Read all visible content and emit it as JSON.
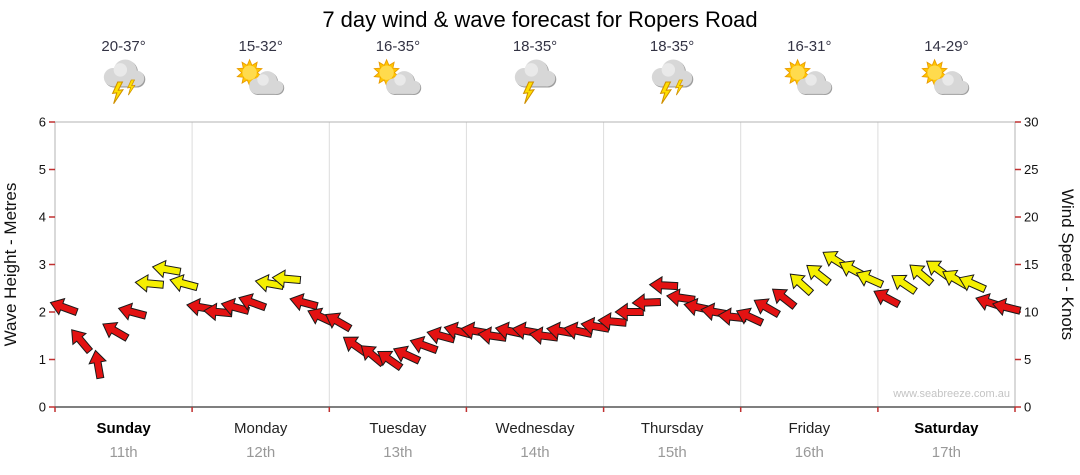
{
  "title": "7 day wind & wave forecast for Ropers Road",
  "watermark": "www.seabreeze.com.au",
  "axes": {
    "left_label": "Wave Height - Metres",
    "right_label": "Wind Speed - Knots",
    "left_ticks": [
      0,
      1,
      2,
      3,
      4,
      5,
      6
    ],
    "right_ticks": [
      0,
      5,
      10,
      15,
      20,
      25,
      30
    ]
  },
  "forecast": {
    "days": [
      {
        "name": "Sunday",
        "date": "11th",
        "temp": "20-37°",
        "icon": "storm",
        "bolts": 2,
        "bold": true
      },
      {
        "name": "Monday",
        "date": "12th",
        "temp": "15-32°",
        "icon": "partly-sunny",
        "bolts": 0,
        "bold": false
      },
      {
        "name": "Tuesday",
        "date": "13th",
        "temp": "16-35°",
        "icon": "partly-sunny",
        "bolts": 0,
        "bold": false
      },
      {
        "name": "Wednesday",
        "date": "14th",
        "temp": "18-35°",
        "icon": "storm",
        "bolts": 1,
        "bold": false
      },
      {
        "name": "Thursday",
        "date": "15th",
        "temp": "18-35°",
        "icon": "storm",
        "bolts": 2,
        "bold": false
      },
      {
        "name": "Friday",
        "date": "16th",
        "temp": "16-31°",
        "icon": "partly-sunny",
        "bolts": 0,
        "bold": false
      },
      {
        "name": "Saturday",
        "date": "17th",
        "temp": "14-29°",
        "icon": "partly-sunny",
        "bolts": 0,
        "bold": true
      }
    ]
  },
  "chart_data": {
    "type": "scatter",
    "marker": "wind-direction-arrow",
    "title": "7 day wind & wave forecast for Ropers Road",
    "x_categories": [
      "Sunday 11th",
      "Monday 12th",
      "Tuesday 13th",
      "Wednesday 14th",
      "Thursday 15th",
      "Friday 16th",
      "Saturday 17th"
    ],
    "points_per_day": 8,
    "ylabel_left": "Wave Height - Metres",
    "ylim_left": [
      0,
      6
    ],
    "ylabel_right": "Wind Speed - Knots",
    "ylim_right": [
      0,
      30
    ],
    "yellow_threshold_knots": 13,
    "colors": {
      "red": "#e31212",
      "yellow": "#f5ef00"
    },
    "legend": "arrow color: red below 13 knots, yellow at or above 13 knots",
    "series": [
      {
        "name": "Wind Speed (knots)",
        "values": [
          10.5,
          7,
          4.5,
          8,
          10,
          13,
          14.5,
          13,
          10.5,
          10,
          10.5,
          11,
          13,
          13.5,
          11,
          9.5,
          9,
          6.5,
          5.5,
          5,
          5.5,
          6.5,
          7.5,
          8,
          8,
          7.5,
          8,
          8,
          7.5,
          8,
          8,
          8.5,
          9,
          10,
          11,
          12.8,
          11.5,
          10.5,
          10,
          9.5,
          9.5,
          10.5,
          11.5,
          13,
          14,
          15.5,
          14.5,
          13.5,
          11.5,
          13,
          14,
          14.5,
          13.5,
          13,
          11,
          10.5
        ],
        "directions_deg": [
          200,
          230,
          260,
          210,
          195,
          185,
          190,
          195,
          190,
          185,
          195,
          200,
          190,
          185,
          195,
          205,
          210,
          215,
          220,
          215,
          205,
          200,
          195,
          195,
          190,
          188,
          192,
          190,
          187,
          190,
          192,
          190,
          185,
          180,
          178,
          183,
          188,
          192,
          190,
          186,
          205,
          210,
          218,
          222,
          218,
          212,
          208,
          204,
          208,
          214,
          220,
          216,
          210,
          204,
          198,
          194
        ]
      }
    ]
  }
}
